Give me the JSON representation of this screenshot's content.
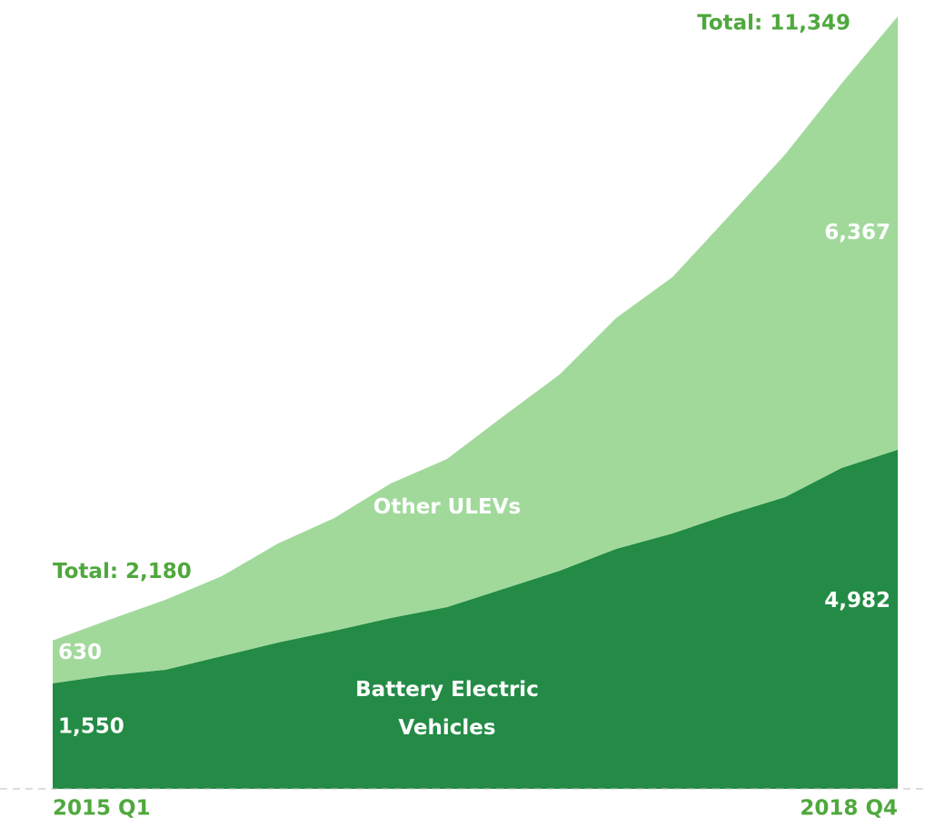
{
  "chart_data": {
    "type": "stacked_area",
    "categories": [
      "2015 Q1",
      null,
      null,
      null,
      null,
      null,
      null,
      null,
      null,
      null,
      null,
      null,
      null,
      null,
      null,
      "2018 Q4"
    ],
    "series": [
      {
        "name": "Battery Electric Vehicles",
        "color": "#238b45",
        "values": [
          1550,
          1669,
          1749,
          1949,
          2150,
          2323,
          2510,
          2670,
          2937,
          3204,
          3525,
          3752,
          4032,
          4286,
          4713,
          4982
        ],
        "value_labels": [
          "1,550",
          null,
          null,
          null,
          null,
          null,
          null,
          null,
          null,
          null,
          null,
          null,
          null,
          null,
          null,
          "4,982"
        ]
      },
      {
        "name": "Other ULEVs",
        "color": "#a1d99b",
        "values": [
          630,
          814,
          1028,
          1175,
          1455,
          1656,
          1976,
          2176,
          2537,
          2884,
          3391,
          3765,
          4379,
          5033,
          5647,
          6367
        ],
        "value_labels": [
          "630",
          null,
          null,
          null,
          null,
          null,
          null,
          null,
          null,
          null,
          null,
          null,
          null,
          null,
          null,
          "6,367"
        ]
      }
    ],
    "annotations": [
      "Total: 2,180",
      "Total: 11,349"
    ],
    "ylim": [
      0,
      11349
    ]
  }
}
